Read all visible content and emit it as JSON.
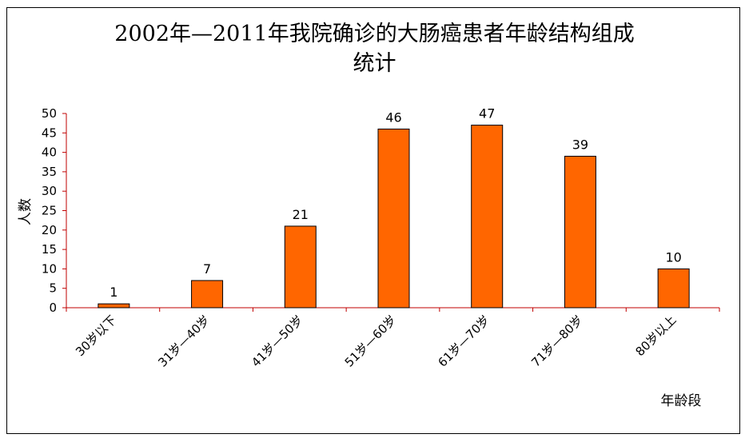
{
  "chart_data": {
    "type": "bar",
    "title_line1": "2002年—2011年我院确诊的大肠癌患者年龄结构组成",
    "title_line2": "统计",
    "xlabel": "年龄段",
    "ylabel": "人数",
    "categories": [
      "30岁以下",
      "31岁—40岁",
      "41岁—50岁",
      "51岁—60岁",
      "61岁—70岁",
      "71岁—80岁",
      "80岁以上"
    ],
    "values": [
      1,
      7,
      21,
      46,
      47,
      39,
      10
    ],
    "ylim": [
      0,
      50
    ],
    "yticks": [
      0,
      5,
      10,
      15,
      20,
      25,
      30,
      35,
      40,
      45,
      50
    ],
    "grid": false,
    "legend": "none",
    "colors": {
      "bar_fill": "#ff6600",
      "bar_stroke": "#000000",
      "axis": "#c00000"
    }
  }
}
